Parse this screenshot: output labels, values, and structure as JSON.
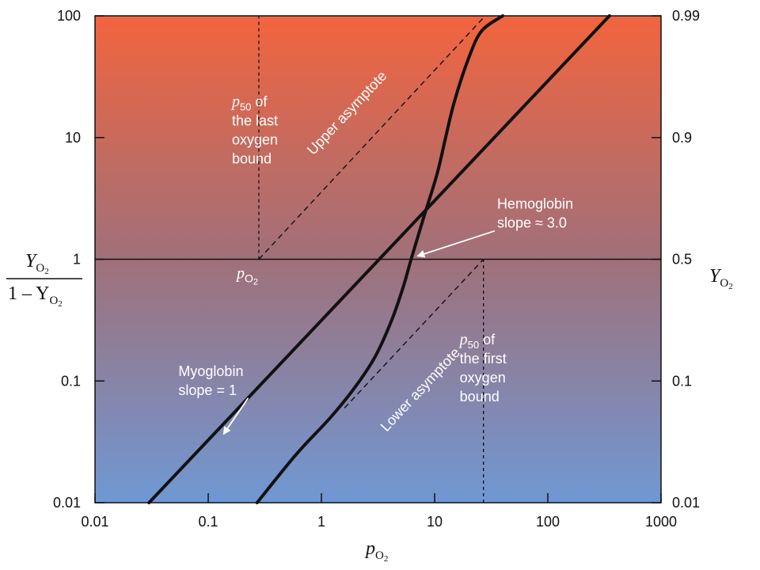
{
  "chart_data": {
    "type": "line",
    "title": "",
    "x_axis": {
      "scale": "log",
      "range": [
        0.01,
        1000
      ],
      "ticks": [
        0.01,
        0.1,
        1,
        10,
        100,
        1000
      ],
      "tick_labels": [
        "0.01",
        "0.1",
        "1",
        "10",
        "100",
        "1000"
      ],
      "label_main": "p",
      "label_sub": "O",
      "label_subsub": "2"
    },
    "y_axis_left": {
      "scale": "log",
      "range": [
        0.01,
        100
      ],
      "ticks": [
        0.01,
        0.1,
        1,
        10,
        100
      ],
      "tick_labels": [
        "0.01",
        "0.1",
        "1",
        "10",
        "100"
      ],
      "label_numerator": "Y",
      "label_denominator_prefix": "1 – Y",
      "label_sub": "O",
      "label_subsub": "2"
    },
    "y_axis_right": {
      "tick_values_ratio": [
        0.01,
        0.1,
        1,
        10,
        100
      ],
      "tick_labels": [
        "0.01",
        "0.1",
        "0.5",
        "0.9",
        "0.99"
      ],
      "label_main": "Y",
      "label_sub": "O",
      "label_subsub": "2"
    },
    "background_gradient": {
      "top": "#f2643e",
      "middle": "#a0707a",
      "bottom": "#6f98d4"
    },
    "grid": false,
    "reference_line_y": 1,
    "series": [
      {
        "name": "Myoglobin",
        "style": "solid-thick",
        "color": "#111111",
        "points": [
          [
            0.03,
            0.01
          ],
          [
            350,
            100
          ]
        ]
      },
      {
        "name": "Hemoglobin",
        "style": "solid-thick",
        "color": "#111111",
        "points": [
          [
            0.27,
            0.01
          ],
          [
            0.6,
            0.025
          ],
          [
            1.2,
            0.05
          ],
          [
            2.0,
            0.09
          ],
          [
            3.0,
            0.16
          ],
          [
            4.2,
            0.32
          ],
          [
            5.3,
            0.6
          ],
          [
            6.2,
            1.0
          ],
          [
            8.0,
            2.2
          ],
          [
            10.5,
            5.0
          ],
          [
            12.5,
            10
          ],
          [
            15,
            20
          ],
          [
            20,
            45
          ],
          [
            26,
            75
          ],
          [
            40,
            100
          ]
        ]
      },
      {
        "name": "Upper asymptote",
        "style": "dashed",
        "color": "#111111",
        "points": [
          [
            0.28,
            1
          ],
          [
            28,
            100
          ]
        ]
      },
      {
        "name": "Lower asymptote",
        "style": "dashed",
        "color": "#111111",
        "points": [
          [
            1.6,
            0.06
          ],
          [
            27,
            1
          ]
        ]
      },
      {
        "name": "p50 last",
        "style": "dotted-vertical",
        "color": "#111111",
        "points": [
          [
            0.28,
            1
          ],
          [
            0.28,
            100
          ]
        ]
      },
      {
        "name": "p50 first",
        "style": "dotted-vertical",
        "color": "#111111",
        "points": [
          [
            27,
            0.01
          ],
          [
            27,
            1
          ]
        ]
      }
    ],
    "annotations": [
      {
        "id": "p50-last",
        "lines": [
          "p50 of",
          "the last",
          "oxygen",
          "bound"
        ],
        "anchor": [
          0.28,
          18
        ]
      },
      {
        "id": "upper-asymptote",
        "lines": [
          "Upper asymptote"
        ],
        "anchor": [
          1.8,
          15
        ]
      },
      {
        "id": "hemoglobin",
        "lines": [
          "Hemoglobin",
          "slope ≈ 3.0"
        ],
        "anchor": [
          28,
          2.6
        ]
      },
      {
        "id": "myoglobin",
        "lines": [
          "Myoglobin",
          "slope = 1"
        ],
        "anchor": [
          0.045,
          0.11
        ]
      },
      {
        "id": "lower-asymptote",
        "lines": [
          "Lower asymptote"
        ],
        "anchor": [
          8,
          0.08
        ]
      },
      {
        "id": "p50-first",
        "lines": [
          "p50 of",
          "the first",
          "oxygen",
          "bound"
        ],
        "anchor": [
          27,
          0.2
        ]
      },
      {
        "id": "po2-marker",
        "lines": [
          "pO2"
        ],
        "anchor": [
          0.28,
          0.9
        ]
      }
    ]
  }
}
